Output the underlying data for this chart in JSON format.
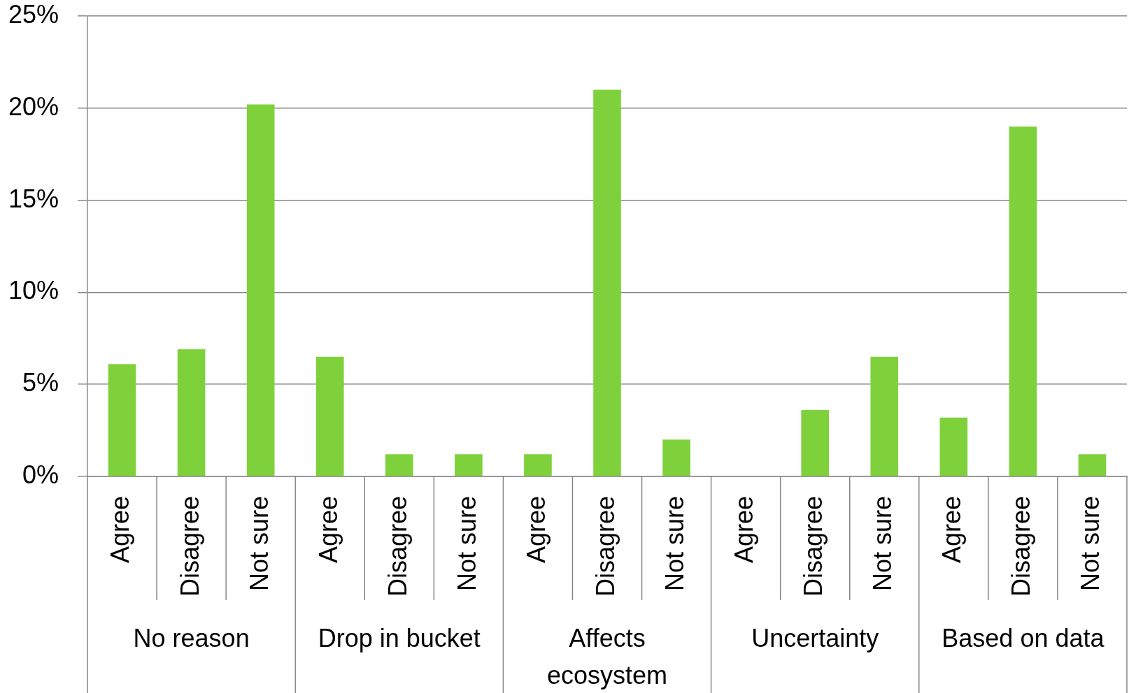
{
  "chart_data": {
    "type": "bar",
    "categories": [
      "Agree",
      "Disagree",
      "Not sure",
      "Agree",
      "Disagree",
      "Not sure",
      "Agree",
      "Disagree",
      "Not sure",
      "Agree",
      "Disagree",
      "Not sure",
      "Agree",
      "Disagree",
      "Not sure"
    ],
    "values": [
      6.1,
      6.9,
      20.2,
      6.5,
      1.2,
      1.2,
      1.2,
      21.0,
      2.0,
      0,
      3.6,
      6.5,
      3.2,
      19.0,
      1.2
    ],
    "color": "#7ed13b",
    "ylim": [
      0,
      25
    ],
    "yticks": [
      {
        "value": 0,
        "label": "0%"
      },
      {
        "value": 5,
        "label": "5%"
      },
      {
        "value": 10,
        "label": "10%"
      },
      {
        "value": 15,
        "label": "15%"
      },
      {
        "value": 20,
        "label": "20%"
      },
      {
        "value": 25,
        "label": "25%"
      }
    ],
    "grid": "y",
    "annotations": [
      "No reason",
      "Drop in bucket",
      "Affects ecosystem",
      "Uncertainty",
      "Based on data"
    ]
  }
}
